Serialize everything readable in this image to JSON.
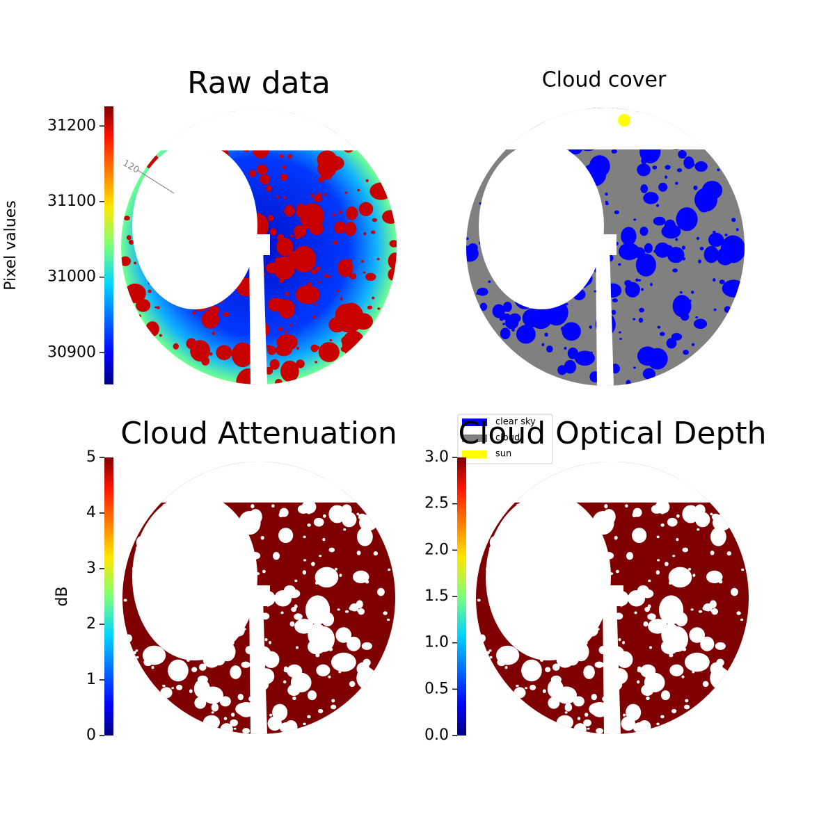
{
  "chart_data": [
    {
      "type": "image",
      "title": "Raw data",
      "colorbar_label": "Pixel values",
      "colormap": "jet",
      "clim": [
        30858,
        31226
      ],
      "cticks": [
        30900,
        31000,
        31100,
        31200
      ],
      "annotations": [
        "120"
      ]
    },
    {
      "type": "image",
      "title": "Cloud cover",
      "legend": [
        {
          "name": "clear sky",
          "color": "#0000ff"
        },
        {
          "name": "cloud",
          "color": "#808080"
        },
        {
          "name": "sun",
          "color": "#ffff00"
        }
      ]
    },
    {
      "type": "image",
      "title": "Cloud Attenuation",
      "colorbar_label": "dB",
      "colormap": "jet",
      "clim": [
        0,
        5
      ],
      "cticks": [
        0,
        1,
        2,
        3,
        4,
        5
      ]
    },
    {
      "type": "image",
      "title": "Cloud Optical Depth",
      "colormap": "jet",
      "clim": [
        0,
        3
      ],
      "cticks": [
        {
          "value": 0,
          "label": "0.0"
        },
        0.5,
        {
          "value": 1,
          "label": "1.0"
        },
        1.5,
        {
          "value": 2,
          "label": "2.0"
        },
        2.5,
        {
          "value": 3,
          "label": "3.0"
        }
      ]
    }
  ]
}
